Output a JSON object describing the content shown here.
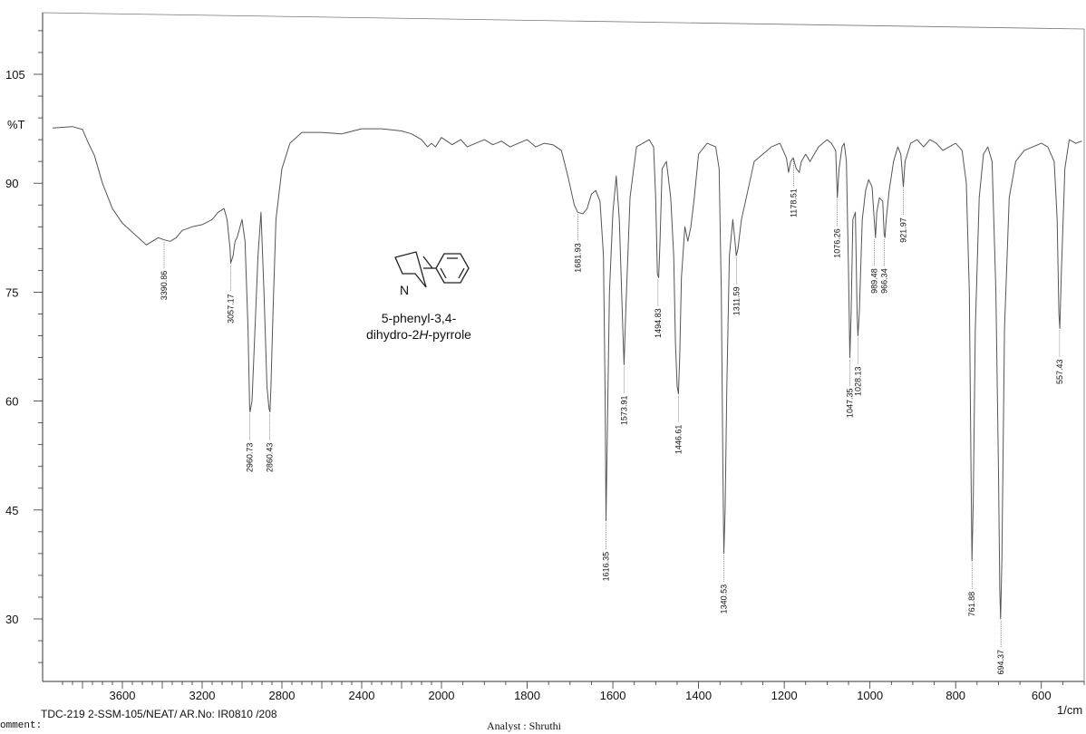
{
  "chart_data": {
    "type": "line",
    "title": "",
    "xlabel": "1/cm",
    "ylabel": "%T",
    "xlim": [
      4000,
      500
    ],
    "ylim": [
      22,
      115
    ],
    "x_ticks": [
      3600,
      3200,
      2800,
      2400,
      2000,
      1800,
      1600,
      1400,
      1200,
      1000,
      800,
      600
    ],
    "y_ticks": [
      105,
      90,
      75,
      60,
      45,
      30
    ],
    "grid": false,
    "points": [
      [
        3950,
        97.6
      ],
      [
        3850,
        97.8
      ],
      [
        3800,
        97.4
      ],
      [
        3770,
        95.5
      ],
      [
        3740,
        93.8
      ],
      [
        3700,
        90.0
      ],
      [
        3650,
        86.5
      ],
      [
        3600,
        84.5
      ],
      [
        3560,
        83.5
      ],
      [
        3520,
        82.5
      ],
      [
        3480,
        81.5
      ],
      [
        3450,
        82.0
      ],
      [
        3420,
        82.5
      ],
      [
        3390,
        82.2
      ],
      [
        3360,
        82.0
      ],
      [
        3330,
        82.5
      ],
      [
        3300,
        83.5
      ],
      [
        3250,
        84.0
      ],
      [
        3200,
        84.3
      ],
      [
        3150,
        85.0
      ],
      [
        3120,
        86.0
      ],
      [
        3090,
        86.5
      ],
      [
        3075,
        85.0
      ],
      [
        3060,
        81.0
      ],
      [
        3057,
        79.0
      ],
      [
        3045,
        80.0
      ],
      [
        3035,
        82.0
      ],
      [
        3025,
        82.5
      ],
      [
        3000,
        85.0
      ],
      [
        2985,
        82.0
      ],
      [
        2970,
        70.0
      ],
      [
        2962,
        59.0
      ],
      [
        2960,
        58.5
      ],
      [
        2950,
        60.0
      ],
      [
        2935,
        70.0
      ],
      [
        2920,
        80.0
      ],
      [
        2905,
        86.0
      ],
      [
        2890,
        75.0
      ],
      [
        2875,
        62.0
      ],
      [
        2865,
        59.0
      ],
      [
        2860,
        58.5
      ],
      [
        2855,
        62.0
      ],
      [
        2845,
        72.0
      ],
      [
        2830,
        85.0
      ],
      [
        2800,
        92.0
      ],
      [
        2760,
        95.5
      ],
      [
        2700,
        97.0
      ],
      [
        2600,
        97.0
      ],
      [
        2500,
        96.8
      ],
      [
        2400,
        97.5
      ],
      [
        2300,
        97.5
      ],
      [
        2200,
        97.2
      ],
      [
        2150,
        96.8
      ],
      [
        2100,
        96.0
      ],
      [
        2070,
        95.0
      ],
      [
        2050,
        95.5
      ],
      [
        2030,
        95.0
      ],
      [
        2000,
        96.3
      ],
      [
        1975,
        95.3
      ],
      [
        1955,
        96.0
      ],
      [
        1940,
        95.0
      ],
      [
        1920,
        95.5
      ],
      [
        1900,
        96.0
      ],
      [
        1880,
        95.3
      ],
      [
        1860,
        95.8
      ],
      [
        1840,
        95.0
      ],
      [
        1820,
        95.5
      ],
      [
        1800,
        96.0
      ],
      [
        1780,
        95.0
      ],
      [
        1760,
        95.5
      ],
      [
        1740,
        95.3
      ],
      [
        1720,
        94.5
      ],
      [
        1705,
        91.0
      ],
      [
        1690,
        87.0
      ],
      [
        1682,
        86.0
      ],
      [
        1670,
        85.8
      ],
      [
        1660,
        86.5
      ],
      [
        1650,
        88.5
      ],
      [
        1640,
        89.0
      ],
      [
        1630,
        87.5
      ],
      [
        1622,
        80.0
      ],
      [
        1618,
        60.0
      ],
      [
        1616,
        43.5
      ],
      [
        1613,
        55.0
      ],
      [
        1608,
        75.0
      ],
      [
        1600,
        86.0
      ],
      [
        1592,
        91.0
      ],
      [
        1585,
        85.0
      ],
      [
        1578,
        72.0
      ],
      [
        1574,
        65.0
      ],
      [
        1570,
        72.0
      ],
      [
        1560,
        88.0
      ],
      [
        1545,
        95.0
      ],
      [
        1530,
        95.5
      ],
      [
        1515,
        96.0
      ],
      [
        1505,
        95.0
      ],
      [
        1500,
        88.0
      ],
      [
        1496,
        77.5
      ],
      [
        1493,
        77.0
      ],
      [
        1490,
        82.0
      ],
      [
        1485,
        92.0
      ],
      [
        1475,
        93.0
      ],
      [
        1465,
        88.0
      ],
      [
        1458,
        80.0
      ],
      [
        1454,
        68.0
      ],
      [
        1450,
        62.0
      ],
      [
        1447,
        61.0
      ],
      [
        1444,
        66.0
      ],
      [
        1440,
        77.0
      ],
      [
        1432,
        84.0
      ],
      [
        1425,
        82.0
      ],
      [
        1418,
        84.0
      ],
      [
        1410,
        88.0
      ],
      [
        1400,
        94.0
      ],
      [
        1380,
        95.5
      ],
      [
        1360,
        95.0
      ],
      [
        1352,
        92.0
      ],
      [
        1347,
        75.0
      ],
      [
        1343,
        50.0
      ],
      [
        1341,
        39.0
      ],
      [
        1338,
        45.0
      ],
      [
        1334,
        62.0
      ],
      [
        1328,
        80.0
      ],
      [
        1320,
        85.0
      ],
      [
        1315,
        82.0
      ],
      [
        1312,
        80.0
      ],
      [
        1308,
        81.0
      ],
      [
        1300,
        85.0
      ],
      [
        1285,
        89.0
      ],
      [
        1270,
        93.0
      ],
      [
        1250,
        94.0
      ],
      [
        1230,
        95.0
      ],
      [
        1210,
        95.5
      ],
      [
        1195,
        93.5
      ],
      [
        1190,
        91.5
      ],
      [
        1185,
        93.0
      ],
      [
        1179,
        93.5
      ],
      [
        1172,
        92.0
      ],
      [
        1165,
        91.5
      ],
      [
        1160,
        93.0
      ],
      [
        1150,
        94.0
      ],
      [
        1140,
        93.0
      ],
      [
        1120,
        95.0
      ],
      [
        1100,
        96.0
      ],
      [
        1090,
        95.5
      ],
      [
        1080,
        94.5
      ],
      [
        1076,
        88.0
      ],
      [
        1072,
        92.0
      ],
      [
        1065,
        95.0
      ],
      [
        1060,
        95.5
      ],
      [
        1055,
        93.0
      ],
      [
        1050,
        78.0
      ],
      [
        1047,
        66.0
      ],
      [
        1044,
        72.0
      ],
      [
        1040,
        85.0
      ],
      [
        1034,
        86.0
      ],
      [
        1030,
        72.0
      ],
      [
        1028,
        69.0
      ],
      [
        1025,
        72.0
      ],
      [
        1018,
        85.0
      ],
      [
        1010,
        89.0
      ],
      [
        1003,
        90.5
      ],
      [
        995,
        89.5
      ],
      [
        990,
        85.0
      ],
      [
        987,
        82.5
      ],
      [
        984,
        86.0
      ],
      [
        978,
        88.0
      ],
      [
        970,
        87.5
      ],
      [
        967,
        83.0
      ],
      [
        965,
        82.5
      ],
      [
        962,
        85.0
      ],
      [
        955,
        89.0
      ],
      [
        945,
        93.0
      ],
      [
        935,
        95.0
      ],
      [
        928,
        94.0
      ],
      [
        922,
        89.5
      ],
      [
        918,
        93.0
      ],
      [
        905,
        95.5
      ],
      [
        890,
        96.0
      ],
      [
        875,
        95.0
      ],
      [
        860,
        96.0
      ],
      [
        845,
        95.5
      ],
      [
        830,
        94.5
      ],
      [
        815,
        95.0
      ],
      [
        800,
        95.5
      ],
      [
        785,
        94.5
      ],
      [
        775,
        90.0
      ],
      [
        768,
        75.0
      ],
      [
        764,
        50.0
      ],
      [
        762,
        38.0
      ],
      [
        759,
        46.0
      ],
      [
        754,
        70.0
      ],
      [
        745,
        88.0
      ],
      [
        735,
        94.0
      ],
      [
        725,
        95.0
      ],
      [
        715,
        93.0
      ],
      [
        706,
        75.0
      ],
      [
        700,
        50.0
      ],
      [
        697,
        34.0
      ],
      [
        695,
        30.0
      ],
      [
        692,
        38.0
      ],
      [
        686,
        70.0
      ],
      [
        675,
        88.0
      ],
      [
        660,
        93.0
      ],
      [
        640,
        94.5
      ],
      [
        620,
        95.0
      ],
      [
        600,
        95.5
      ],
      [
        585,
        95.0
      ],
      [
        570,
        93.0
      ],
      [
        563,
        85.0
      ],
      [
        559,
        72.0
      ],
      [
        557,
        70.0
      ],
      [
        553,
        78.0
      ],
      [
        545,
        92.0
      ],
      [
        535,
        96.0
      ],
      [
        520,
        95.5
      ],
      [
        505,
        95.8
      ]
    ],
    "peaks": [
      {
        "label": "3390.86",
        "x": 3390.86,
        "y": 82.2
      },
      {
        "label": "3057.17",
        "x": 3057.17,
        "y": 79.0
      },
      {
        "label": "2960.73",
        "x": 2960.73,
        "y": 58.5
      },
      {
        "label": "2860.43",
        "x": 2860.43,
        "y": 58.5
      },
      {
        "label": "1681.93",
        "x": 1681.93,
        "y": 86.0
      },
      {
        "label": "1616.35",
        "x": 1616.35,
        "y": 43.5
      },
      {
        "label": "1573.91",
        "x": 1573.91,
        "y": 65.0
      },
      {
        "label": "1494.83",
        "x": 1494.83,
        "y": 77.0
      },
      {
        "label": "1446.61",
        "x": 1446.61,
        "y": 61.0
      },
      {
        "label": "1340.53",
        "x": 1340.53,
        "y": 39.0
      },
      {
        "label": "1311.59",
        "x": 1311.59,
        "y": 80.0
      },
      {
        "label": "1178.51",
        "x": 1178.51,
        "y": 93.5
      },
      {
        "label": "1076.26",
        "x": 1076.26,
        "y": 88.0
      },
      {
        "label": "1047.35",
        "x": 1047.35,
        "y": 66.0
      },
      {
        "label": "1028.13",
        "x": 1028.13,
        "y": 69.0
      },
      {
        "label": "989.48",
        "x": 989.48,
        "y": 82.5
      },
      {
        "label": "966.34",
        "x": 966.34,
        "y": 82.5
      },
      {
        "label": "921.97",
        "x": 921.97,
        "y": 89.5
      },
      {
        "label": "761.88",
        "x": 761.88,
        "y": 38.0
      },
      {
        "label": "694.37",
        "x": 694.37,
        "y": 30.0
      },
      {
        "label": "557.43",
        "x": 557.43,
        "y": 70.0
      }
    ]
  },
  "structure": {
    "atom_label": "N",
    "name_line1": "5-phenyl-3,4-",
    "name_line2_pre": "dihydro-2",
    "name_line2_italic": "H",
    "name_line2_post": "-pyrrole"
  },
  "footer": {
    "sample": "TDC-219 2-SSM-105/NEAT/ AR.No: IR0810 /208",
    "comment": "omment:",
    "analyst": "Analyst : Shruthi"
  },
  "colors": {
    "trace": "#555555",
    "frame": "#333333"
  }
}
